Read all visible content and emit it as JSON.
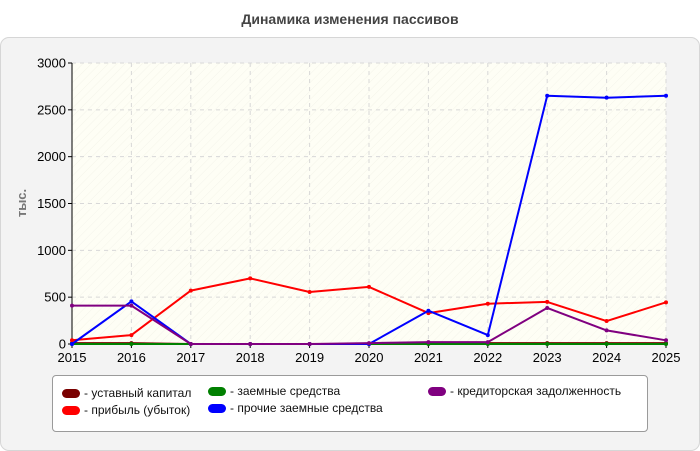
{
  "chart_data": {
    "type": "line",
    "title": "Динамика изменения пассивов",
    "ylabel": "тыс.",
    "xlabel": "",
    "x": [
      "2015",
      "2016",
      "2017",
      "2018",
      "2019",
      "2020",
      "2021",
      "2022",
      "2023",
      "2024",
      "2025"
    ],
    "y_ticks": [
      "0",
      "500",
      "1000",
      "1500",
      "2000",
      "2500",
      "3000"
    ],
    "ylim": [
      0,
      3000
    ],
    "grid": true,
    "legend_position": "bottom",
    "series": [
      {
        "name": "уставный капитал",
        "color": "#7a0000",
        "values": [
          10,
          10,
          0,
          0,
          0,
          0,
          10,
          10,
          10,
          10,
          10
        ]
      },
      {
        "name": "прибыль (убыток)",
        "color": "#ff0000",
        "values": [
          40,
          95,
          570,
          700,
          555,
          610,
          330,
          430,
          450,
          245,
          445
        ]
      },
      {
        "name": "заемные средства",
        "color": "#008000",
        "values": [
          0,
          0,
          0,
          0,
          0,
          0,
          0,
          0,
          0,
          0,
          0
        ]
      },
      {
        "name": "прочие заемные средства",
        "color": "#0000ff",
        "values": [
          0,
          455,
          0,
          0,
          0,
          0,
          355,
          95,
          2650,
          2630,
          2650
        ]
      },
      {
        "name": "кредиторская задолженность",
        "color": "#800080",
        "values": [
          410,
          410,
          0,
          0,
          0,
          10,
          20,
          20,
          385,
          145,
          40
        ]
      }
    ]
  }
}
